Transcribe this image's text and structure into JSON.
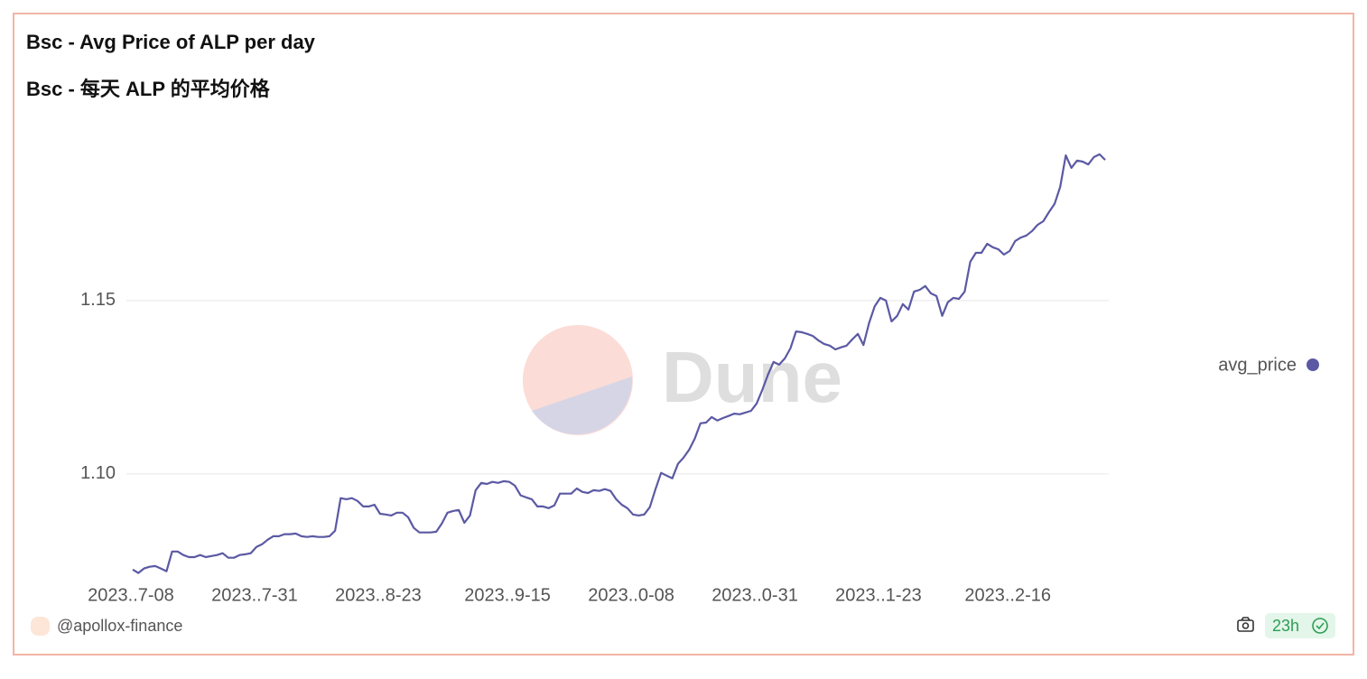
{
  "header": {
    "title": "Bsc - Avg Price of ALP per day",
    "subtitle": "Bsc - 每天 ALP 的平均价格"
  },
  "chart_data": {
    "type": "line",
    "watermark": "Dune",
    "categories": [
      "2023..7-08",
      null,
      null,
      null,
      null,
      null,
      null,
      null,
      null,
      null,
      null,
      null,
      null,
      null,
      null,
      null,
      null,
      null,
      null,
      null,
      null,
      null,
      "2023..7-31",
      null,
      null,
      null,
      null,
      null,
      null,
      null,
      null,
      null,
      null,
      null,
      null,
      null,
      null,
      null,
      null,
      null,
      null,
      null,
      null,
      null,
      "2023..8-23",
      null,
      null,
      null,
      null,
      null,
      null,
      null,
      null,
      null,
      null,
      null,
      null,
      null,
      null,
      null,
      null,
      null,
      null,
      null,
      null,
      null,
      null,
      "2023..9-15",
      null,
      null,
      null,
      null,
      null,
      null,
      null,
      null,
      null,
      null,
      null,
      null,
      null,
      null,
      null,
      null,
      null,
      null,
      null,
      null,
      null,
      "2023..0-08",
      null,
      null,
      null,
      null,
      null,
      null,
      null,
      null,
      null,
      null,
      null,
      null,
      null,
      null,
      null,
      null,
      null,
      null,
      null,
      null,
      null,
      "2023..0-31",
      null,
      null,
      null,
      null,
      null,
      null,
      null,
      null,
      null,
      null,
      null,
      null,
      null,
      null,
      null,
      null,
      null,
      null,
      null,
      null,
      null,
      "2023..1-23",
      null,
      null,
      null,
      null,
      null,
      null,
      null,
      null,
      null,
      null,
      null,
      null,
      null,
      null,
      null,
      null,
      null,
      null,
      null,
      null,
      null,
      null,
      "2023..2-16",
      null,
      null,
      null,
      null,
      null,
      null,
      null,
      null,
      null,
      null,
      null,
      null,
      null,
      null,
      null,
      null,
      null
    ],
    "series": [
      {
        "name": "avg_price",
        "color": "#5b59a3",
        "values": [
          1.0724,
          1.0714,
          1.0727,
          1.0732,
          1.0734,
          1.0727,
          1.0719,
          1.0776,
          1.0776,
          1.0766,
          1.076,
          1.076,
          1.0766,
          1.076,
          1.0763,
          1.0766,
          1.0771,
          1.0758,
          1.0758,
          1.0766,
          1.0768,
          1.0771,
          1.0789,
          1.0797,
          1.081,
          1.082,
          1.082,
          1.0826,
          1.0826,
          1.0828,
          1.082,
          1.0818,
          1.082,
          1.0818,
          1.0818,
          1.082,
          1.0836,
          1.093,
          1.0927,
          1.093,
          1.0922,
          1.0906,
          1.0906,
          1.0911,
          1.0885,
          1.0883,
          1.088,
          1.0888,
          1.0888,
          1.0875,
          1.0844,
          1.0831,
          1.0831,
          1.0831,
          1.0833,
          1.0857,
          1.0888,
          1.0893,
          1.0896,
          1.0859,
          1.088,
          1.0953,
          1.0974,
          1.0971,
          1.0977,
          1.0974,
          1.0979,
          1.0977,
          1.0966,
          1.0938,
          1.0932,
          1.0927,
          1.0906,
          1.0906,
          1.0901,
          1.0909,
          1.0943,
          1.0943,
          1.0943,
          1.0958,
          1.0948,
          1.0945,
          1.0953,
          1.0951,
          1.0956,
          1.0951,
          1.0927,
          1.0911,
          1.0901,
          1.0883,
          1.088,
          1.0883,
          1.0904,
          1.0956,
          1.1003,
          1.0995,
          1.0987,
          1.1029,
          1.1047,
          1.107,
          1.1102,
          1.1146,
          1.1148,
          1.1164,
          1.1154,
          1.1161,
          1.1167,
          1.1174,
          1.1172,
          1.1177,
          1.1182,
          1.1203,
          1.1242,
          1.1286,
          1.1323,
          1.1315,
          1.1333,
          1.1362,
          1.1411,
          1.1409,
          1.1404,
          1.1398,
          1.1385,
          1.1375,
          1.137,
          1.1359,
          1.1365,
          1.137,
          1.1388,
          1.1404,
          1.1372,
          1.1435,
          1.1484,
          1.1508,
          1.15,
          1.144,
          1.1456,
          1.149,
          1.1474,
          1.1526,
          1.1531,
          1.1542,
          1.1521,
          1.1513,
          1.1456,
          1.1495,
          1.1508,
          1.1505,
          1.1526,
          1.1612,
          1.1638,
          1.1638,
          1.1664,
          1.1654,
          1.1648,
          1.1633,
          1.1643,
          1.1672,
          1.1682,
          1.1688,
          1.1701,
          1.1719,
          1.1729,
          1.1755,
          1.1779,
          1.1828,
          1.1919,
          1.1883,
          1.1904,
          1.1901,
          1.1893,
          1.1914,
          1.1922,
          1.1906
        ]
      }
    ],
    "ylim": [
      1.07,
      1.2
    ],
    "yticks": [
      {
        "value": 1.1,
        "label": "1.10"
      },
      1.15
    ],
    "grid": true
  },
  "footer": {
    "author": "@apollox-finance",
    "age": "23h"
  }
}
